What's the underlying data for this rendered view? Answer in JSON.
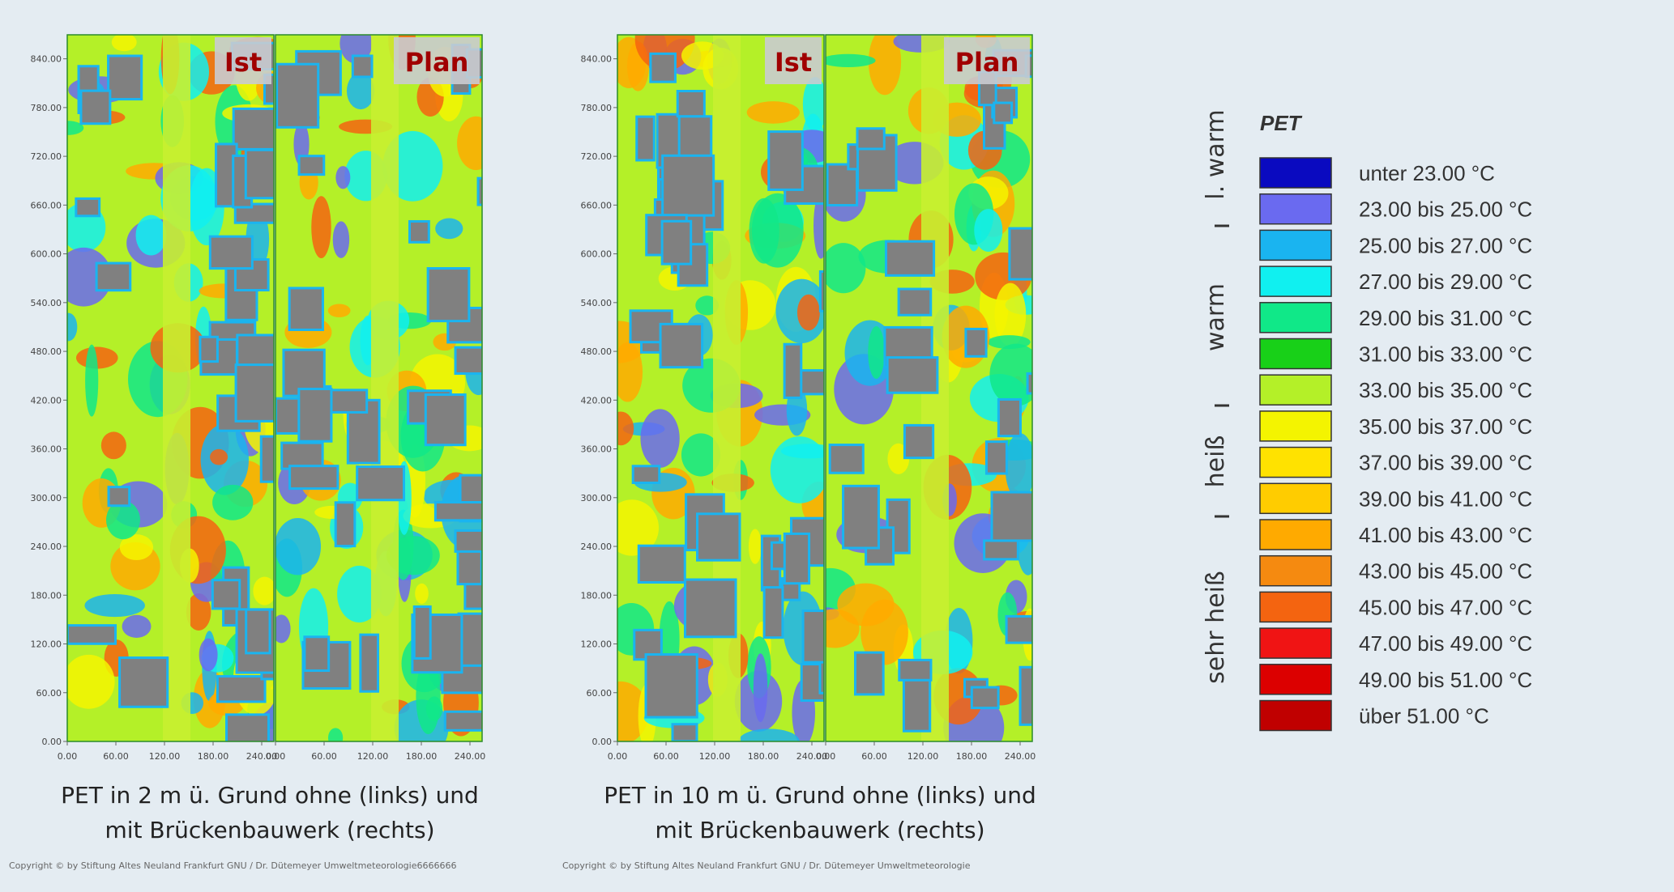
{
  "panels": [
    {
      "map": {
        "yticks": [
          "0.00",
          "60.00",
          "120.00",
          "180.00",
          "240.00",
          "300.00",
          "360.00",
          "420.00",
          "480.00",
          "540.00",
          "600.00",
          "660.00",
          "720.00",
          "780.00",
          "840.00"
        ],
        "halves": [
          {
            "label": "Ist",
            "xticks": [
              "0.00",
              "60.00",
              "120.00",
              "180.00",
              "240.00"
            ]
          },
          {
            "label": "Plan",
            "xticks": [
              "0.00",
              "60.00",
              "120.00",
              "180.00",
              "240.00"
            ]
          }
        ]
      },
      "caption": [
        "PET in 2 m ü. Grund ohne (links) und",
        "mit Brückenbauwerk (rechts)"
      ],
      "copyright": "Copyright © by Stiftung Altes Neuland Frankfurt GNU / Dr. Dütemeyer Umweltmeteorologie6666666"
    },
    {
      "map": {
        "yticks": [
          "0.00",
          "60.00",
          "120.00",
          "180.00",
          "240.00",
          "300.00",
          "360.00",
          "420.00",
          "480.00",
          "540.00",
          "600.00",
          "660.00",
          "720.00",
          "780.00",
          "840.00"
        ],
        "halves": [
          {
            "label": "Ist",
            "xticks": [
              "0.00",
              "60.00",
              "120.00",
              "180.00",
              "240.00"
            ]
          },
          {
            "label": "Plan",
            "xticks": [
              "0.00",
              "60.00",
              "120.00",
              "180.00",
              "240.00"
            ]
          }
        ]
      },
      "caption": [
        "PET in 10 m ü. Grund ohne (links) und",
        "mit Brückenbauwerk (rechts)"
      ],
      "copyright": "Copyright © by Stiftung Altes Neuland Frankfurt GNU / Dr. Dütemeyer Umweltmeteorologie"
    }
  ],
  "legend": {
    "title": "PET",
    "groups": [
      "l. warm",
      "warm",
      "heiß",
      "sehr heiß"
    ],
    "items": [
      {
        "color": "#0a0ac0",
        "label": "unter 23.00 °C"
      },
      {
        "color": "#6a6af0",
        "label": "23.00 bis 25.00 °C"
      },
      {
        "color": "#1ab4f0",
        "label": "25.00 bis 27.00 °C"
      },
      {
        "color": "#10f0f0",
        "label": "27.00 bis 29.00 °C"
      },
      {
        "color": "#10e888",
        "label": "29.00 bis 31.00 °C"
      },
      {
        "color": "#18d018",
        "label": "31.00 bis 33.00 °C"
      },
      {
        "color": "#b4f028",
        "label": "33.00 bis 35.00 °C"
      },
      {
        "color": "#f4f400",
        "label": "35.00 bis 37.00 °C"
      },
      {
        "color": "#ffe200",
        "label": "37.00 bis 39.00 °C"
      },
      {
        "color": "#ffcc00",
        "label": "39.00 bis 41.00 °C"
      },
      {
        "color": "#ffaa00",
        "label": "41.00 bis 43.00 °C"
      },
      {
        "color": "#f58a10",
        "label": "43.00 bis 45.00 °C"
      },
      {
        "color": "#f46410",
        "label": "45.00 bis 47.00 °C"
      },
      {
        "color": "#f01414",
        "label": "47.00 bis 49.00 °C"
      },
      {
        "color": "#dc0000",
        "label": "49.00 bis 51.00 °C"
      },
      {
        "color": "#c00000",
        "label": "über 51.00 °C"
      }
    ]
  }
}
